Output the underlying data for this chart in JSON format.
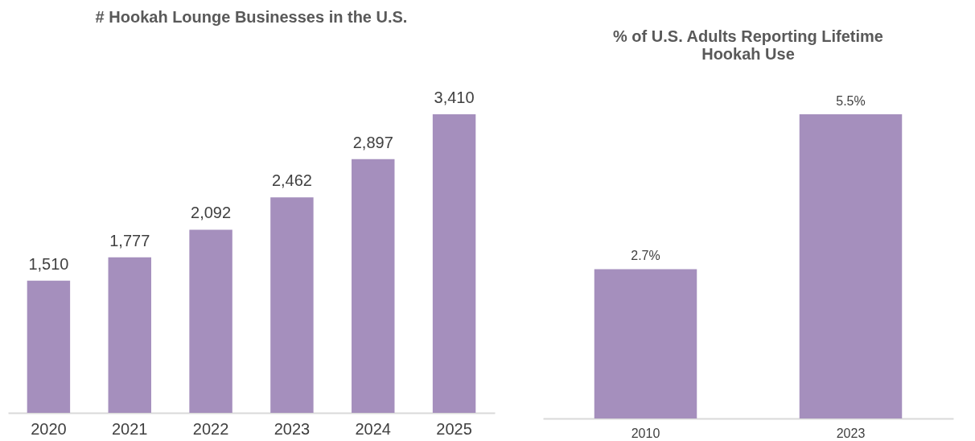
{
  "chart_data": [
    {
      "type": "bar",
      "title": "# Hookah Lounge Businesses in the U.S.",
      "categories": [
        "2020",
        "2021",
        "2022",
        "2023",
        "2024",
        "2025"
      ],
      "values": [
        1510,
        1777,
        2092,
        2462,
        2897,
        3410
      ],
      "color": "#a58fbd",
      "value_labels": [
        "1,510",
        "1,777",
        "2,092",
        "2,462",
        "2,897",
        "3,410"
      ]
    },
    {
      "type": "bar",
      "title": "% of U.S. Adults Reporting Lifetime Hookah Use",
      "categories": [
        "2010",
        "2023"
      ],
      "values": [
        2.7,
        5.5
      ],
      "color": "#a58fbd",
      "value_labels": [
        "2.7%",
        "5.5%"
      ]
    }
  ]
}
